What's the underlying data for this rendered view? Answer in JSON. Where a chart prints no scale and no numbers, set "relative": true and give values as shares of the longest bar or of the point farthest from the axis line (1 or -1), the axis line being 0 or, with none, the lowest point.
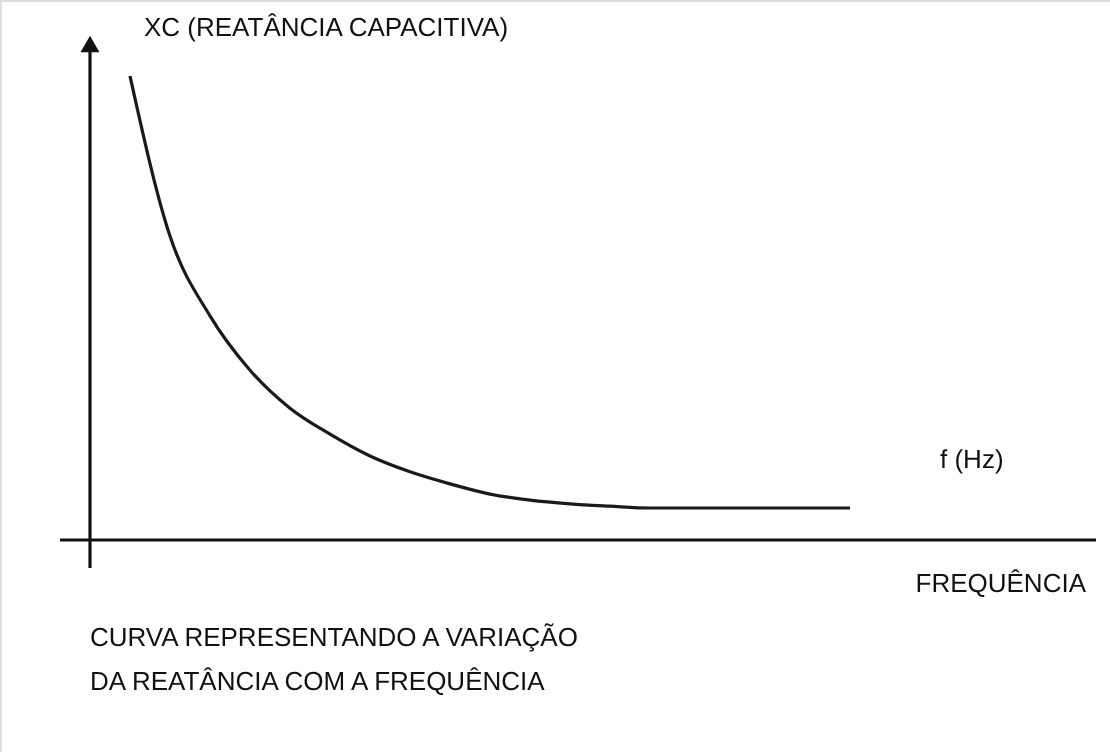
{
  "chart_data": {
    "type": "line",
    "relative": true,
    "color": "#1a1a1a",
    "ylabel": "XC (REATÂNCIA CAPACITIVA)",
    "xlabel": "FREQUÊNCIA",
    "categories": [
      null,
      null,
      null,
      null,
      null,
      null,
      null,
      null,
      null,
      null,
      null,
      null,
      null,
      null,
      null,
      null,
      null,
      null,
      null
    ],
    "values": [
      1,
      0.655,
      0.483,
      0.366,
      0.284,
      0.228,
      0.181,
      0.147,
      0.121,
      0.099,
      0.086,
      0.078,
      0.073,
      0.069,
      0.069,
      0.069,
      0.069,
      0.069,
      0.069
    ],
    "annotations": [
      "f (Hz)",
      "CURVA REPRESENTANDO A VARIAÇÃO\nDA REATÂNCIA COM A FREQUÊNCIA"
    ],
    "marker": "none",
    "line_style": "solid"
  }
}
